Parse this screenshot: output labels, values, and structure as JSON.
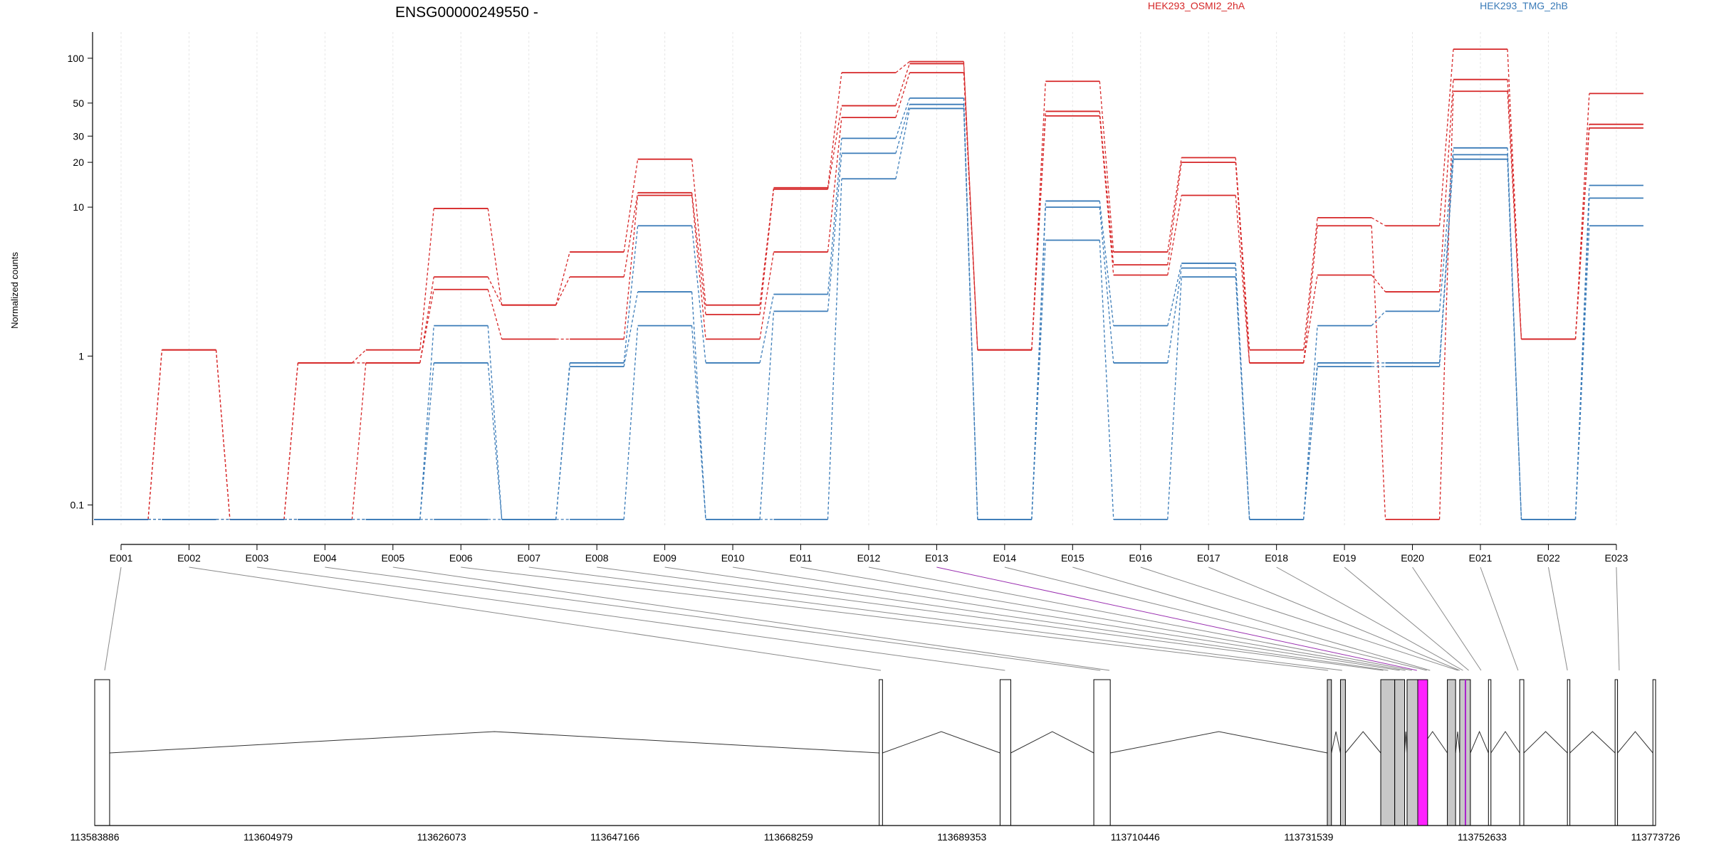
{
  "chart_data": {
    "type": "line",
    "title": "ENSG00000249550 -",
    "ylabel": "Normalized counts",
    "yscale": "log",
    "ylim": [
      0.07,
      150
    ],
    "yticks": [
      0.1,
      1,
      10,
      20,
      30,
      50,
      100
    ],
    "yticklabels": [
      "0.1",
      "1",
      "10",
      "20",
      "30",
      "50",
      "100"
    ],
    "categories": [
      "E001",
      "E002",
      "E003",
      "E004",
      "E005",
      "E006",
      "E007",
      "E008",
      "E009",
      "E010",
      "E011",
      "E012",
      "E013",
      "E014",
      "E015",
      "E016",
      "E017",
      "E018",
      "E019",
      "E020",
      "E021",
      "E022",
      "E023"
    ],
    "legend": [
      {
        "name": "HEK293_OSMI2_2hA",
        "color": "#d62728"
      },
      {
        "name": "HEK293_TMG_2hB",
        "color": "#3a7bb8"
      }
    ],
    "series": [
      {
        "group": 0,
        "values": [
          0.08,
          1.1,
          0.08,
          0.9,
          1.1,
          9.8,
          2.2,
          5.0,
          21.0,
          2.2,
          13.5,
          80,
          95,
          1.1,
          70,
          5.0,
          21.5,
          1.1,
          8.5,
          7.5,
          115,
          1.3,
          58
        ]
      },
      {
        "group": 0,
        "values": [
          0.08,
          1.1,
          0.08,
          0.9,
          0.9,
          3.4,
          2.2,
          3.4,
          12.5,
          1.9,
          13.2,
          48,
          92,
          1.1,
          44,
          4.1,
          20.0,
          0.9,
          3.5,
          2.7,
          72,
          1.3,
          36
        ]
      },
      {
        "group": 0,
        "values": [
          0.08,
          0.08,
          0.08,
          0.08,
          0.9,
          2.8,
          1.3,
          1.3,
          12.0,
          1.3,
          5.0,
          40,
          80,
          1.1,
          41,
          3.5,
          12.0,
          0.9,
          7.5,
          0.08,
          60,
          1.3,
          34
        ]
      },
      {
        "group": 1,
        "values": [
          0.08,
          0.08,
          0.08,
          0.08,
          0.08,
          1.6,
          0.08,
          0.9,
          7.5,
          0.9,
          2.6,
          29,
          54,
          0.08,
          11,
          1.6,
          4.2,
          0.08,
          1.6,
          2.0,
          25,
          0.08,
          14
        ]
      },
      {
        "group": 1,
        "values": [
          0.08,
          0.08,
          0.08,
          0.08,
          0.08,
          0.9,
          0.08,
          0.85,
          2.7,
          0.08,
          2.0,
          23,
          49,
          0.08,
          10,
          0.9,
          3.9,
          0.08,
          0.9,
          0.9,
          22.5,
          0.08,
          11.5
        ]
      },
      {
        "group": 1,
        "values": [
          0.08,
          0.08,
          0.08,
          0.08,
          0.08,
          0.08,
          0.08,
          0.08,
          1.6,
          0.08,
          0.08,
          15.5,
          46,
          0.08,
          6.0,
          0.08,
          3.4,
          0.08,
          0.85,
          0.85,
          21,
          0.08,
          7.5
        ]
      }
    ],
    "gene_model": {
      "coordinate_labels": [
        "113583886",
        "113604979",
        "113626073",
        "113647166",
        "113668259",
        "113689353",
        "113710446",
        "113731539",
        "113752633",
        "113773726"
      ],
      "coord_start": 113583886,
      "coord_end": 113773726,
      "exon_color": "#c8c8c8",
      "highlight_color": "#ff22ff",
      "highlight_exons": [
        "E013"
      ],
      "exons": [
        {
          "start": 113583886,
          "end": 113585700
        },
        {
          "start": 113679300,
          "end": 113679700
        },
        {
          "start": 113694000,
          "end": 113695300
        },
        {
          "start": 113705400,
          "end": 113707400
        },
        {
          "start": 113733800,
          "end": 113734300
        },
        {
          "start": 113735400,
          "end": 113736000
        },
        {
          "start": 113740300,
          "end": 113742000
        },
        {
          "start": 113742000,
          "end": 113743200
        },
        {
          "start": 113743500,
          "end": 113744800
        },
        {
          "start": 113748400,
          "end": 113749400
        },
        {
          "start": 113749900,
          "end": 113751200
        },
        {
          "start": 113753400,
          "end": 113753700
        },
        {
          "start": 113757200,
          "end": 113757700
        },
        {
          "start": 113763000,
          "end": 113763300
        },
        {
          "start": 113768800,
          "end": 113769100
        },
        {
          "start": 113773400,
          "end": 113773726
        }
      ],
      "exon_map": [
        113585100,
        113679500,
        113694600,
        113706200,
        113707300,
        113733900,
        113735600,
        113740600,
        113741200,
        113742600,
        113743300,
        113744100,
        113744700,
        113745900,
        113746300,
        113749700,
        113749900,
        113750300,
        113751000,
        113752500,
        113757000,
        113763000,
        113769300
      ]
    }
  }
}
